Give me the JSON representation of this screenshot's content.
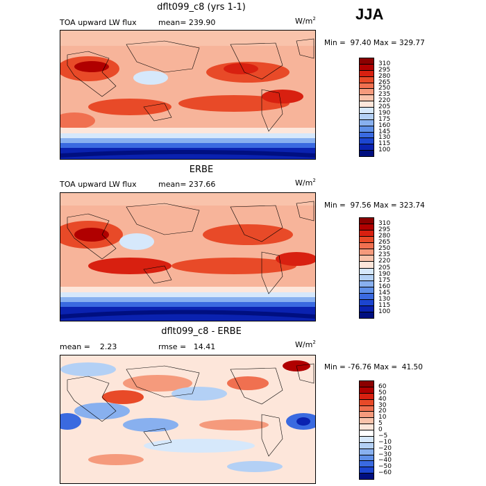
{
  "season": "JJA",
  "panels": [
    {
      "title": "dflt099_c8 (yrs 1-1)",
      "field": "TOA upward LW flux",
      "stat": "mean= 239.90",
      "units": "W/m",
      "units_sup": "2",
      "minmax": "Min =  97.40 Max = 329.77",
      "colorbar": {
        "levels": [
          "310",
          "295",
          "280",
          "265",
          "250",
          "235",
          "220",
          "205",
          "190",
          "175",
          "160",
          "145",
          "130",
          "115",
          "100"
        ],
        "colors": [
          "#8b0000",
          "#b00000",
          "#d82010",
          "#e84a28",
          "#f07050",
          "#f59a7c",
          "#f9c3ab",
          "#fde6da",
          "#d6e8fb",
          "#b3d0f5",
          "#88b0ef",
          "#5e8fe8",
          "#3a6ae0",
          "#1c45d0",
          "#0a22b0",
          "#000f80"
        ]
      }
    },
    {
      "title": "ERBE",
      "field": "TOA upward LW flux",
      "stat": "mean= 237.66",
      "units": "W/m",
      "units_sup": "2",
      "minmax": "Min =  97.56 Max = 323.74",
      "colorbar": {
        "levels": [
          "310",
          "295",
          "280",
          "265",
          "250",
          "235",
          "220",
          "205",
          "190",
          "175",
          "160",
          "145",
          "130",
          "115",
          "100"
        ],
        "colors": [
          "#8b0000",
          "#b00000",
          "#d82010",
          "#e84a28",
          "#f07050",
          "#f59a7c",
          "#f9c3ab",
          "#fde6da",
          "#d6e8fb",
          "#b3d0f5",
          "#88b0ef",
          "#5e8fe8",
          "#3a6ae0",
          "#1c45d0",
          "#0a22b0",
          "#000f80"
        ]
      }
    },
    {
      "title": "dflt099_c8 - ERBE",
      "field": "mean =    2.23",
      "stat": "rmse =   14.41",
      "units": "W/m",
      "units_sup": "2",
      "minmax": "Min = -76.76 Max =  41.50",
      "colorbar": {
        "levels": [
          "60",
          "50",
          "40",
          "30",
          "20",
          "10",
          "5",
          "0",
          "−5",
          "−10",
          "−20",
          "−30",
          "−40",
          "−50",
          "−60"
        ],
        "colors": [
          "#8b0000",
          "#b00000",
          "#d82010",
          "#e84a28",
          "#f07050",
          "#f59a7c",
          "#f9c3ab",
          "#fde6da",
          "#ffffff",
          "#d6e8fb",
          "#b3d0f5",
          "#88b0ef",
          "#5e8fe8",
          "#3a6ae0",
          "#1c45d0",
          "#000f80"
        ]
      }
    }
  ]
}
